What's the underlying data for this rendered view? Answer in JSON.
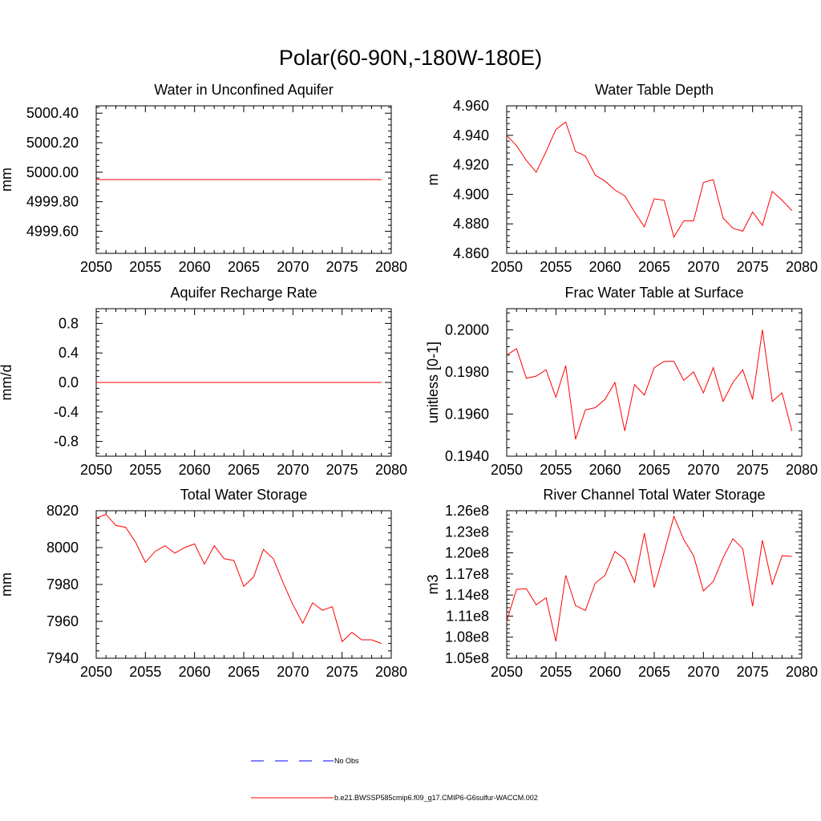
{
  "page": {
    "title": "Polar(60-90N,-180W-180E)"
  },
  "colors": {
    "model": "#ff0000",
    "obs": "#0000ff",
    "axis": "#000000",
    "background": "#ffffff"
  },
  "legend": {
    "placement": "bottom-center",
    "items": [
      {
        "label": "No Obs",
        "style": "dashed",
        "color": "#0000ff"
      },
      {
        "label": "b.e21.BWSSP585cmip6.f09_g17.CMIP6-G6sulfur-WACCM.002",
        "style": "solid",
        "color": "#ff0000"
      }
    ]
  },
  "chart_data": [
    {
      "type": "line",
      "title": "Water in Unconfined Aquifer",
      "ylabel": "mm",
      "xlim": [
        2050,
        2080
      ],
      "ylim": [
        4999.45,
        5000.45
      ],
      "xticks": [
        2050,
        2055,
        2060,
        2065,
        2070,
        2075,
        2080
      ],
      "xtick_labels": [
        "2050",
        "2055",
        "2060",
        "2065",
        "2070",
        "2075",
        "2080"
      ],
      "yticks": [
        4999.6,
        4999.8,
        5000.0,
        5000.2,
        5000.4
      ],
      "ytick_labels": [
        "4999.60",
        "4999.80",
        "5000.00",
        "5000.20",
        "5000.40"
      ],
      "x": [
        2050,
        2051,
        2052,
        2053,
        2054,
        2055,
        2056,
        2057,
        2058,
        2059,
        2060,
        2061,
        2062,
        2063,
        2064,
        2065,
        2066,
        2067,
        2068,
        2069,
        2070,
        2071,
        2072,
        2073,
        2074,
        2075,
        2076,
        2077,
        2078,
        2079
      ],
      "series": [
        {
          "values": [
            4999.95,
            4999.95,
            4999.95,
            4999.95,
            4999.95,
            4999.95,
            4999.95,
            4999.95,
            4999.95,
            4999.95,
            4999.95,
            4999.95,
            4999.95,
            4999.95,
            4999.95,
            4999.95,
            4999.95,
            4999.95,
            4999.95,
            4999.95,
            4999.95,
            4999.95,
            4999.95,
            4999.95,
            4999.95,
            4999.95,
            4999.95,
            4999.95,
            4999.95,
            4999.95
          ]
        }
      ]
    },
    {
      "type": "line",
      "title": "Water Table Depth",
      "ylabel": "m",
      "xlim": [
        2050,
        2080
      ],
      "ylim": [
        4.86,
        4.96
      ],
      "xticks": [
        2050,
        2055,
        2060,
        2065,
        2070,
        2075,
        2080
      ],
      "xtick_labels": [
        "2050",
        "2055",
        "2060",
        "2065",
        "2070",
        "2075",
        "2080"
      ],
      "yticks": [
        4.86,
        4.88,
        4.9,
        4.92,
        4.94,
        4.96
      ],
      "ytick_labels": [
        "4.860",
        "4.880",
        "4.900",
        "4.920",
        "4.940",
        "4.960"
      ],
      "x": [
        2050,
        2051,
        2052,
        2053,
        2054,
        2055,
        2056,
        2057,
        2058,
        2059,
        2060,
        2061,
        2062,
        2063,
        2064,
        2065,
        2066,
        2067,
        2068,
        2069,
        2070,
        2071,
        2072,
        2073,
        2074,
        2075,
        2076,
        2077,
        2078,
        2079
      ],
      "series": [
        {
          "values": [
            4.94,
            4.933,
            4.923,
            4.915,
            4.929,
            4.944,
            4.949,
            4.929,
            4.926,
            4.913,
            4.909,
            4.903,
            4.899,
            4.888,
            4.878,
            4.897,
            4.896,
            4.871,
            4.882,
            4.882,
            4.908,
            4.91,
            4.884,
            4.877,
            4.875,
            4.888,
            4.879,
            4.902,
            4.896,
            4.889
          ]
        }
      ]
    },
    {
      "type": "line",
      "title": "Aquifer Recharge Rate",
      "ylabel": "mm/d",
      "xlim": [
        2050,
        2080
      ],
      "ylim": [
        -1.0,
        1.0
      ],
      "xticks": [
        2050,
        2055,
        2060,
        2065,
        2070,
        2075,
        2080
      ],
      "xtick_labels": [
        "2050",
        "2055",
        "2060",
        "2065",
        "2070",
        "2075",
        "2080"
      ],
      "yticks": [
        -0.8,
        -0.4,
        0.0,
        0.4,
        0.8
      ],
      "ytick_labels": [
        "-0.8",
        "-0.4",
        "0.0",
        "0.4",
        "0.8"
      ],
      "x": [
        2050,
        2051,
        2052,
        2053,
        2054,
        2055,
        2056,
        2057,
        2058,
        2059,
        2060,
        2061,
        2062,
        2063,
        2064,
        2065,
        2066,
        2067,
        2068,
        2069,
        2070,
        2071,
        2072,
        2073,
        2074,
        2075,
        2076,
        2077,
        2078,
        2079
      ],
      "series": [
        {
          "values": [
            0,
            0,
            0,
            0,
            0,
            0,
            0,
            0,
            0,
            0,
            0,
            0,
            0,
            0,
            0,
            0,
            0,
            0,
            0,
            0,
            0,
            0,
            0,
            0,
            0,
            0,
            0,
            0,
            0,
            0
          ]
        }
      ]
    },
    {
      "type": "line",
      "title": "Frac Water Table at Surface",
      "ylabel": "unitless [0-1]",
      "xlim": [
        2050,
        2080
      ],
      "ylim": [
        0.194,
        0.201
      ],
      "xticks": [
        2050,
        2055,
        2060,
        2065,
        2070,
        2075,
        2080
      ],
      "xtick_labels": [
        "2050",
        "2055",
        "2060",
        "2065",
        "2070",
        "2075",
        "2080"
      ],
      "yticks": [
        0.194,
        0.196,
        0.198,
        0.2
      ],
      "ytick_labels": [
        "0.1940",
        "0.1960",
        "0.1980",
        "0.2000"
      ],
      "x": [
        2050,
        2051,
        2052,
        2053,
        2054,
        2055,
        2056,
        2057,
        2058,
        2059,
        2060,
        2061,
        2062,
        2063,
        2064,
        2065,
        2066,
        2067,
        2068,
        2069,
        2070,
        2071,
        2072,
        2073,
        2074,
        2075,
        2076,
        2077,
        2078,
        2079
      ],
      "series": [
        {
          "values": [
            0.1988,
            0.1991,
            0.1977,
            0.1978,
            0.1981,
            0.1968,
            0.1983,
            0.1948,
            0.1962,
            0.1963,
            0.1967,
            0.1975,
            0.1952,
            0.1974,
            0.1969,
            0.1982,
            0.1985,
            0.1985,
            0.1976,
            0.198,
            0.197,
            0.1982,
            0.1966,
            0.1975,
            0.1981,
            0.1967,
            0.2,
            0.1966,
            0.197,
            0.1952
          ]
        }
      ]
    },
    {
      "type": "line",
      "title": "Total Water Storage",
      "ylabel": "mm",
      "xlim": [
        2050,
        2080
      ],
      "ylim": [
        7940,
        8020
      ],
      "xticks": [
        2050,
        2055,
        2060,
        2065,
        2070,
        2075,
        2080
      ],
      "xtick_labels": [
        "2050",
        "2055",
        "2060",
        "2065",
        "2070",
        "2075",
        "2080"
      ],
      "yticks": [
        7940,
        7960,
        7980,
        8000,
        8020
      ],
      "ytick_labels": [
        "7940",
        "7960",
        "7980",
        "8000",
        "8020"
      ],
      "x": [
        2050,
        2051,
        2052,
        2053,
        2054,
        2055,
        2056,
        2057,
        2058,
        2059,
        2060,
        2061,
        2062,
        2063,
        2064,
        2065,
        2066,
        2067,
        2068,
        2069,
        2070,
        2071,
        2072,
        2073,
        2074,
        2075,
        2076,
        2077,
        2078,
        2079
      ],
      "series": [
        {
          "values": [
            8016,
            8018,
            8012,
            8011,
            8003,
            7992,
            7998,
            8001,
            7997,
            8000,
            8002,
            7991,
            8001,
            7994,
            7993,
            7979,
            7984,
            7999,
            7994,
            7981,
            7969,
            7959,
            7970,
            7966,
            7968,
            7949,
            7954,
            7950,
            7950,
            7948
          ]
        }
      ]
    },
    {
      "type": "line",
      "title": "River Channel Total Water Storage",
      "ylabel": "m3",
      "xlim": [
        2050,
        2080
      ],
      "ylim": [
        105000000,
        126000000
      ],
      "xticks": [
        2050,
        2055,
        2060,
        2065,
        2070,
        2075,
        2080
      ],
      "xtick_labels": [
        "2050",
        "2055",
        "2060",
        "2065",
        "2070",
        "2075",
        "2080"
      ],
      "yticks": [
        105000000,
        108000000,
        111000000,
        114000000,
        117000000,
        120000000,
        123000000,
        126000000
      ],
      "ytick_labels": [
        "1.05e8",
        "1.08e8",
        "1.11e8",
        "1.14e8",
        "1.17e8",
        "1.20e8",
        "1.23e8",
        "1.26e8"
      ],
      "x": [
        2050,
        2051,
        2052,
        2053,
        2054,
        2055,
        2056,
        2057,
        2058,
        2059,
        2060,
        2061,
        2062,
        2063,
        2064,
        2065,
        2066,
        2067,
        2068,
        2069,
        2070,
        2071,
        2072,
        2073,
        2074,
        2075,
        2076,
        2077,
        2078,
        2079
      ],
      "series": [
        {
          "values": [
            110300000,
            114800000,
            114900000,
            112600000,
            113600000,
            107400000,
            116800000,
            112500000,
            111800000,
            115700000,
            116800000,
            120200000,
            119100000,
            115800000,
            122800000,
            115100000,
            120000000,
            125200000,
            121900000,
            119600000,
            114600000,
            115900000,
            119300000,
            122000000,
            120600000,
            112400000,
            121800000,
            115500000,
            119600000,
            119500000
          ]
        }
      ]
    }
  ]
}
